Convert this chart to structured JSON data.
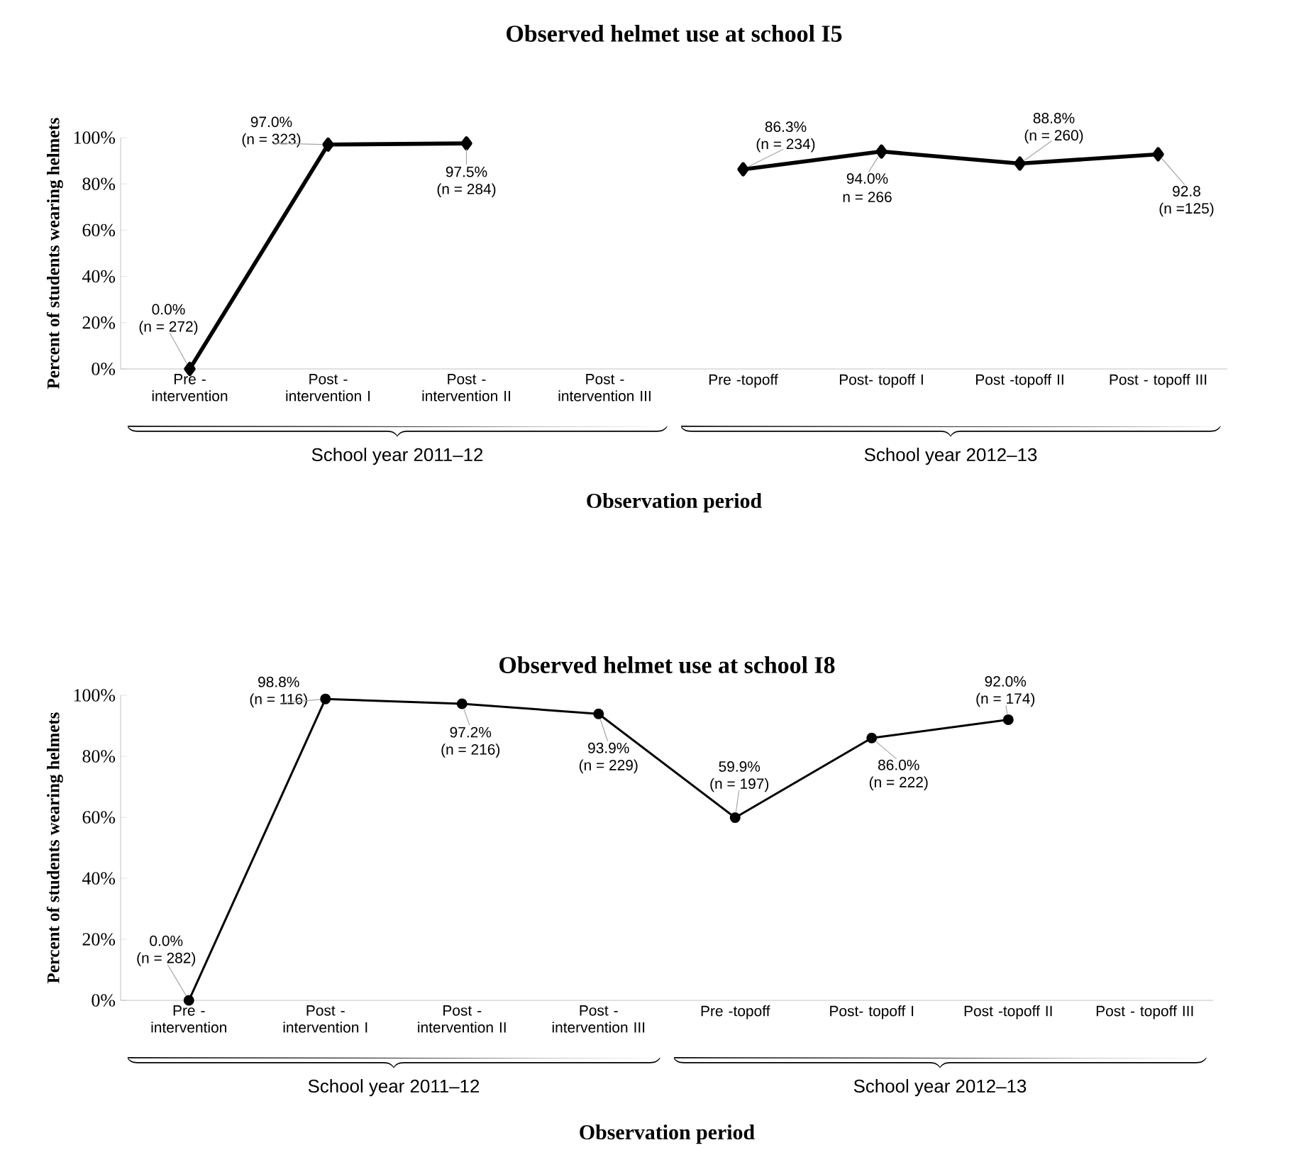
{
  "chart_data": [
    {
      "type": "line",
      "title": "Observed helmet use at school I5",
      "xlabel": "Observation period",
      "ylabel": "Percent of students wearing helmets",
      "categories": [
        "Pre - intervention",
        "Post - intervention I",
        "Post - intervention II",
        "Post - intervention III",
        "Pre -topoff",
        "Post- topoff I",
        "Post -topoff II",
        "Post - topoff III"
      ],
      "values": [
        0.0,
        97.0,
        97.5,
        null,
        86.3,
        94.0,
        88.8,
        92.8
      ],
      "value_labels": [
        "0.0%",
        "97.0%",
        "97.5%",
        null,
        "86.3%",
        "94.0%",
        "88.8%",
        "92.8"
      ],
      "color": "#000000",
      "marker": "diamond",
      "ylim": [
        0,
        100
      ],
      "yticks": [
        {
          "value": 0,
          "label": "0%"
        },
        {
          "value": 20,
          "label": "20%"
        },
        {
          "value": 40,
          "label": "40%"
        },
        {
          "value": 60,
          "label": "60%"
        },
        {
          "value": 80,
          "label": "80%"
        },
        {
          "value": 100,
          "label": "100%"
        }
      ],
      "annotations": [
        "School year 2011–12",
        "School year 2012–13",
        {
          "text": "(n = 272)",
          "x": "Pre - intervention",
          "y": 0.0
        },
        {
          "text": "(n = 323)",
          "x": "Post - intervention I",
          "y": 97.0
        },
        {
          "text": "(n = 284)",
          "x": "Post - intervention II",
          "y": 97.5
        },
        {
          "text": "(n = 234)",
          "x": "Pre -topoff",
          "y": 86.3
        },
        {
          "text": "n = 266",
          "x": "Post- topoff I",
          "y": 94.0
        },
        {
          "text": "(n = 260)",
          "x": "Post -topoff II",
          "y": 88.8
        },
        {
          "text": "(n =125)",
          "x": "Post - topoff III",
          "y": 92.8
        }
      ]
    },
    {
      "type": "line",
      "title": "Observed helmet use at school I8",
      "xlabel": "Observation period",
      "ylabel": "Percent of students wearing helmets",
      "categories": [
        "Pre - intervention",
        "Post - intervention I",
        "Post - intervention II",
        "Post - intervention III",
        "Pre -topoff",
        "Post- topoff I",
        "Post -topoff II",
        "Post - topoff III"
      ],
      "values": [
        0.0,
        98.8,
        97.2,
        93.9,
        59.9,
        86.0,
        92.0,
        null
      ],
      "value_labels": [
        "0.0%",
        "98.8%",
        "97.2%",
        "93.9%",
        "59.9%",
        "86.0%",
        "92.0%",
        null
      ],
      "color": "#000000",
      "marker": "circle",
      "ylim": [
        0,
        100
      ],
      "yticks": [
        {
          "value": 0,
          "label": "0%"
        },
        {
          "value": 20,
          "label": "20%"
        },
        {
          "value": 40,
          "label": "40%"
        },
        {
          "value": 60,
          "label": "60%"
        },
        {
          "value": 80,
          "label": "80%"
        },
        {
          "value": 100,
          "label": "100%"
        }
      ],
      "annotations": [
        "School year 2011–12",
        "School year 2012–13",
        {
          "text": "(n = 282)",
          "x": "Pre - intervention",
          "y": 0.0
        },
        {
          "text": "(n = 116)",
          "x": "Post - intervention I",
          "y": 98.8
        },
        {
          "text": "(n = 216)",
          "x": "Post - intervention II",
          "y": 97.2
        },
        {
          "text": "(n = 229)",
          "x": "Post - intervention III",
          "y": 93.9
        },
        {
          "text": "(n = 197)",
          "x": "Pre -topoff",
          "y": 59.9
        },
        {
          "text": "(n = 222)",
          "x": "Post- topoff I",
          "y": 86.0
        },
        {
          "text": "(n = 174)",
          "x": "Post -topoff II",
          "y": 92.0
        }
      ]
    }
  ]
}
